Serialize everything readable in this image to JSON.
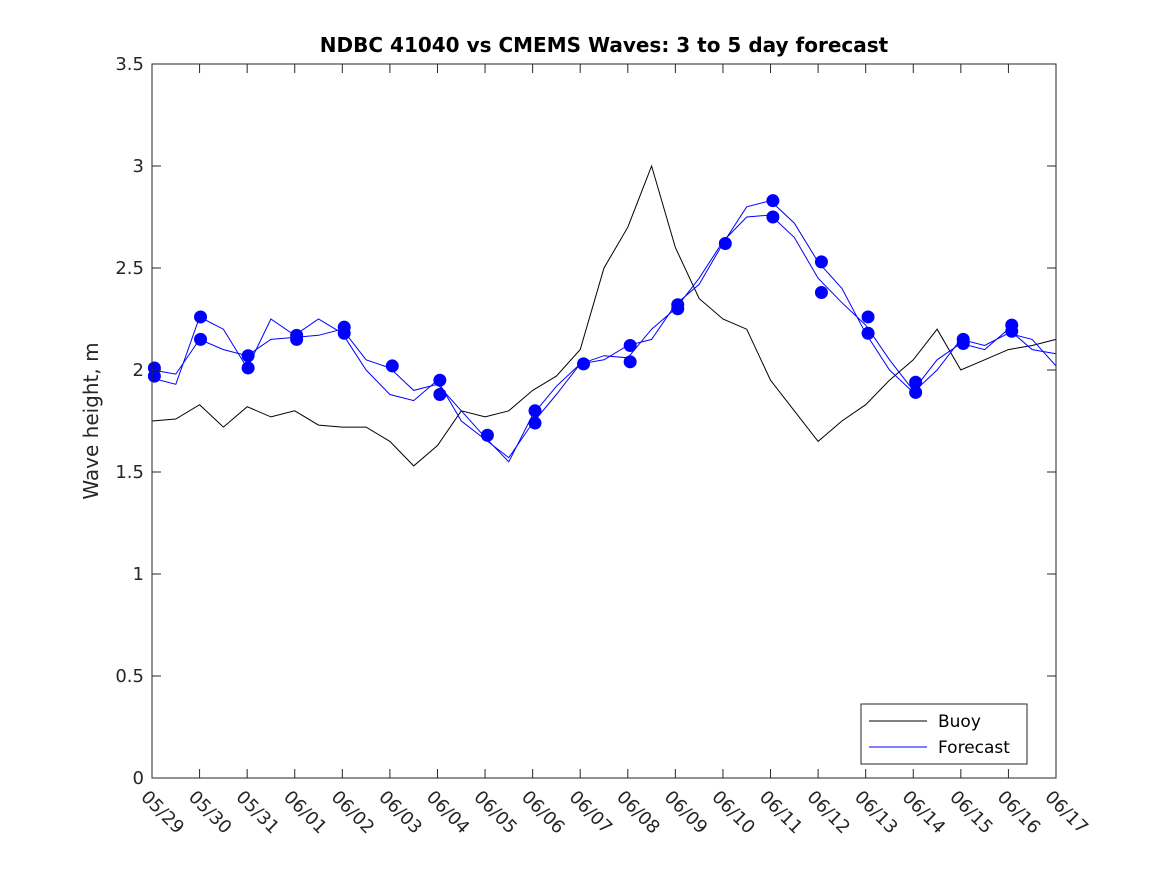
{
  "chart_data": {
    "type": "line",
    "title": "NDBC 41040 vs CMEMS Waves: 3 to 5 day forecast",
    "xlabel": "",
    "ylabel": "Wave height, m",
    "xlim": [
      "05/29",
      "06/17"
    ],
    "ylim": [
      0,
      3.5
    ],
    "yticks": [
      "0",
      "0.5",
      "1",
      "1.5",
      "2",
      "2.5",
      "3",
      "3.5"
    ],
    "xticks": [
      "05/29",
      "05/30",
      "05/31",
      "06/01",
      "06/02",
      "06/03",
      "06/04",
      "06/05",
      "06/06",
      "06/07",
      "06/08",
      "06/09",
      "06/10",
      "06/11",
      "06/12",
      "06/13",
      "06/14",
      "06/15",
      "06/16",
      "06/17"
    ],
    "grid": false,
    "legend": {
      "position": "bottom-right",
      "entries": [
        "Buoy",
        "Forecast"
      ]
    },
    "colors": {
      "buoy": "#000000",
      "forecast": "#0000ff"
    },
    "series": [
      {
        "name": "Buoy",
        "x": [
          0,
          0.5,
          1,
          1.5,
          2,
          2.5,
          3,
          3.5,
          4,
          4.5,
          5,
          5.5,
          6,
          6.5,
          7,
          7.5,
          8,
          8.5,
          9,
          9.5,
          10,
          10.5,
          11,
          11.5,
          12,
          12.5,
          13,
          13.5,
          14,
          14.5,
          15,
          15.5,
          16,
          16.5,
          17,
          17.5,
          18,
          18.5,
          19
        ],
        "values": [
          1.75,
          1.76,
          1.83,
          1.72,
          1.82,
          1.77,
          1.8,
          1.73,
          1.72,
          1.72,
          1.65,
          1.53,
          1.63,
          1.8,
          1.77,
          1.8,
          1.9,
          1.97,
          2.1,
          2.5,
          2.7,
          3.0,
          2.6,
          2.35,
          2.25,
          2.2,
          1.95,
          1.8,
          1.65,
          1.75,
          1.83,
          1.95,
          2.05,
          2.2,
          2.0,
          2.05,
          2.1,
          2.12,
          2.15
        ]
      },
      {
        "name": "Forecast",
        "x": [
          0,
          0.5,
          1,
          1.5,
          2,
          2.5,
          3,
          3.5,
          4,
          4.5,
          5,
          5.5,
          6,
          6.5,
          7,
          7.5,
          8,
          8.5,
          9,
          9.5,
          10,
          10.5,
          11,
          11.5,
          12,
          12.5,
          13,
          13.5,
          14,
          14.5,
          15,
          15.5,
          16,
          16.5,
          17,
          17.5,
          18,
          18.5,
          19
        ],
        "values": [
          2.0,
          1.98,
          2.15,
          2.1,
          2.07,
          2.15,
          2.16,
          2.17,
          2.2,
          2.05,
          2.01,
          1.9,
          1.93,
          1.8,
          1.67,
          1.55,
          1.78,
          1.92,
          2.03,
          2.07,
          2.06,
          2.2,
          2.3,
          2.45,
          2.63,
          2.75,
          2.76,
          2.65,
          2.45,
          2.33,
          2.22,
          2.05,
          1.9,
          2.05,
          2.13,
          2.1,
          2.2,
          2.1,
          2.08
        ]
      },
      {
        "name": "",
        "x": [
          0,
          0.5,
          1,
          1.5,
          2,
          2.5,
          3,
          3.5,
          4,
          4.5,
          5,
          5.5,
          6,
          6.5,
          7,
          7.5,
          8,
          8.5,
          9,
          9.5,
          10,
          10.5,
          11,
          11.5,
          12,
          12.5,
          13,
          13.5,
          14,
          14.5,
          15,
          15.5,
          16,
          16.5,
          17,
          17.5,
          18,
          18.5,
          19
        ],
        "values": [
          1.96,
          1.93,
          2.26,
          2.2,
          2.01,
          2.25,
          2.17,
          2.25,
          2.18,
          2.0,
          1.88,
          1.85,
          1.95,
          1.75,
          1.66,
          1.57,
          1.74,
          1.88,
          2.03,
          2.05,
          2.12,
          2.15,
          2.32,
          2.42,
          2.62,
          2.8,
          2.83,
          2.72,
          2.53,
          2.4,
          2.18,
          2.0,
          1.89,
          2.0,
          2.15,
          2.12,
          2.18,
          2.15,
          2.02
        ]
      }
    ],
    "markers": {
      "x": [
        0.05,
        0.05,
        1.02,
        1.02,
        2.02,
        2.02,
        3.04,
        3.04,
        4.04,
        4.04,
        5.05,
        6.05,
        6.05,
        7.05,
        8.05,
        8.05,
        9.07,
        10.05,
        10.05,
        11.05,
        11.05,
        12.05,
        13.05,
        13.05,
        14.07,
        14.07,
        15.05,
        15.05,
        16.05,
        16.05,
        17.05,
        17.05,
        18.07,
        18.07
      ],
      "values": [
        2.01,
        1.97,
        2.26,
        2.15,
        2.07,
        2.01,
        2.17,
        2.15,
        2.21,
        2.18,
        2.02,
        1.95,
        1.88,
        1.68,
        1.8,
        1.74,
        2.03,
        2.12,
        2.04,
        2.32,
        2.3,
        2.62,
        2.83,
        2.75,
        2.53,
        2.38,
        2.26,
        2.18,
        1.94,
        1.89,
        2.15,
        2.13,
        2.22,
        2.19
      ]
    }
  }
}
